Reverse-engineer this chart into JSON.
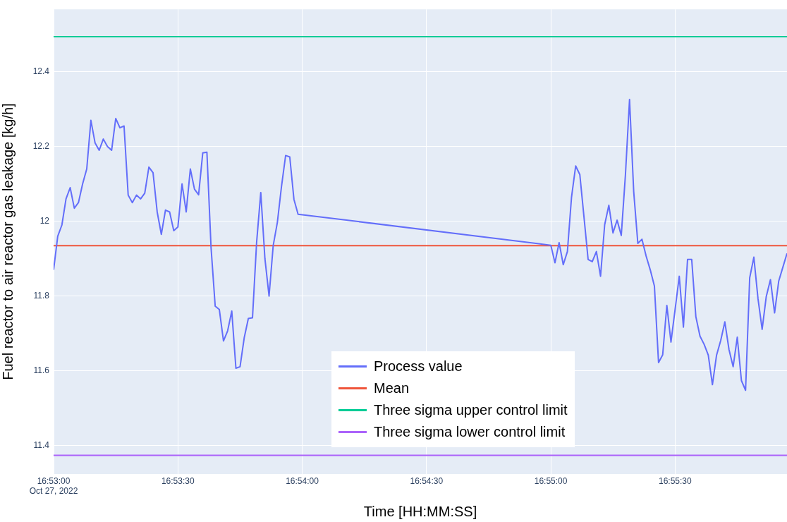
{
  "chart_data": {
    "type": "line",
    "xlabel": "Time [HH:MM:SS]",
    "ylabel": "Fuel reactor to air reactor gas leakage [kg/h]",
    "xlim": [
      "2022-10-27T16:53:00",
      "2022-10-27T16:55:57"
    ],
    "xticks": [
      {
        "value": "2022-10-27T16:53:00",
        "label": "16:53:00\nOct 27, 2022"
      },
      {
        "value": "2022-10-27T16:53:30",
        "label": "16:53:30"
      },
      {
        "value": "2022-10-27T16:54:00",
        "label": "16:54:00"
      },
      {
        "value": "2022-10-27T16:54:30",
        "label": "16:54:30"
      },
      {
        "value": "2022-10-27T16:55:00",
        "label": "16:55:00"
      },
      {
        "value": "2022-10-27T16:55:30",
        "label": "16:55:30"
      }
    ],
    "ylim": [
      11.324,
      12.567
    ],
    "yticks": [
      11.4,
      11.6,
      11.8,
      12,
      12.2,
      12.4
    ],
    "grid": true,
    "legend": "bottom",
    "x": [
      "2022-10-27T16:53:00",
      "2022-10-27T16:53:01",
      "2022-10-27T16:53:02",
      "2022-10-27T16:53:03",
      "2022-10-27T16:53:04",
      "2022-10-27T16:53:05",
      "2022-10-27T16:53:06",
      "2022-10-27T16:53:07",
      "2022-10-27T16:53:08",
      "2022-10-27T16:53:09",
      "2022-10-27T16:53:10",
      "2022-10-27T16:53:11",
      "2022-10-27T16:53:12",
      "2022-10-27T16:53:13",
      "2022-10-27T16:53:14",
      "2022-10-27T16:53:15",
      "2022-10-27T16:53:16",
      "2022-10-27T16:53:17",
      "2022-10-27T16:53:18",
      "2022-10-27T16:53:19",
      "2022-10-27T16:53:20",
      "2022-10-27T16:53:21",
      "2022-10-27T16:53:22",
      "2022-10-27T16:53:23",
      "2022-10-27T16:53:24",
      "2022-10-27T16:53:25",
      "2022-10-27T16:53:26",
      "2022-10-27T16:53:27",
      "2022-10-27T16:53:28",
      "2022-10-27T16:53:29",
      "2022-10-27T16:53:30",
      "2022-10-27T16:53:31",
      "2022-10-27T16:53:32",
      "2022-10-27T16:53:33",
      "2022-10-27T16:53:34",
      "2022-10-27T16:53:35",
      "2022-10-27T16:53:36",
      "2022-10-27T16:53:37",
      "2022-10-27T16:53:38",
      "2022-10-27T16:53:39",
      "2022-10-27T16:53:40",
      "2022-10-27T16:53:41",
      "2022-10-27T16:53:42",
      "2022-10-27T16:53:43",
      "2022-10-27T16:53:44",
      "2022-10-27T16:53:45",
      "2022-10-27T16:53:46",
      "2022-10-27T16:53:47",
      "2022-10-27T16:53:48",
      "2022-10-27T16:53:49",
      "2022-10-27T16:53:50",
      "2022-10-27T16:53:51",
      "2022-10-27T16:53:52",
      "2022-10-27T16:53:53",
      "2022-10-27T16:53:54",
      "2022-10-27T16:53:55",
      "2022-10-27T16:53:56",
      "2022-10-27T16:53:57",
      "2022-10-27T16:53:58",
      "2022-10-27T16:53:59",
      "2022-10-27T16:55:00",
      "2022-10-27T16:55:01",
      "2022-10-27T16:55:02",
      "2022-10-27T16:55:03",
      "2022-10-27T16:55:04",
      "2022-10-27T16:55:05",
      "2022-10-27T16:55:06",
      "2022-10-27T16:55:07",
      "2022-10-27T16:55:08",
      "2022-10-27T16:55:09",
      "2022-10-27T16:55:10",
      "2022-10-27T16:55:11",
      "2022-10-27T16:55:12",
      "2022-10-27T16:55:13",
      "2022-10-27T16:55:14",
      "2022-10-27T16:55:15",
      "2022-10-27T16:55:16",
      "2022-10-27T16:55:17",
      "2022-10-27T16:55:18",
      "2022-10-27T16:55:19",
      "2022-10-27T16:55:20",
      "2022-10-27T16:55:21",
      "2022-10-27T16:55:22",
      "2022-10-27T16:55:23",
      "2022-10-27T16:55:24",
      "2022-10-27T16:55:25",
      "2022-10-27T16:55:26",
      "2022-10-27T16:55:27",
      "2022-10-27T16:55:28",
      "2022-10-27T16:55:29",
      "2022-10-27T16:55:30",
      "2022-10-27T16:55:31",
      "2022-10-27T16:55:32",
      "2022-10-27T16:55:33",
      "2022-10-27T16:55:34",
      "2022-10-27T16:55:35",
      "2022-10-27T16:55:36",
      "2022-10-27T16:55:37",
      "2022-10-27T16:55:38",
      "2022-10-27T16:55:39",
      "2022-10-27T16:55:40",
      "2022-10-27T16:55:41",
      "2022-10-27T16:55:42",
      "2022-10-27T16:55:43",
      "2022-10-27T16:55:44",
      "2022-10-27T16:55:45",
      "2022-10-27T16:55:46",
      "2022-10-27T16:55:47",
      "2022-10-27T16:55:48",
      "2022-10-27T16:55:49",
      "2022-10-27T16:55:50",
      "2022-10-27T16:55:51",
      "2022-10-27T16:55:52",
      "2022-10-27T16:55:53",
      "2022-10-27T16:55:54",
      "2022-10-27T16:55:55",
      "2022-10-27T16:55:56",
      "2022-10-27T16:55:57"
    ],
    "series": [
      {
        "name": "Process value",
        "color": "#636efa",
        "values": [
          11.87,
          11.96,
          11.99,
          12.06,
          12.09,
          12.035,
          12.05,
          12.1,
          12.14,
          12.27,
          12.21,
          12.19,
          12.22,
          12.2,
          12.19,
          12.275,
          12.25,
          12.255,
          12.07,
          12.05,
          12.07,
          12.06,
          12.075,
          12.145,
          12.13,
          12.025,
          11.965,
          12.03,
          12.025,
          11.975,
          11.985,
          12.1,
          12.025,
          12.14,
          12.086,
          12.071,
          12.183,
          12.185,
          11.93,
          11.773,
          11.764,
          11.68,
          11.707,
          11.76,
          11.607,
          11.611,
          11.688,
          11.74,
          11.742,
          11.944,
          12.077,
          11.9,
          11.8,
          11.935,
          11.997,
          12.093,
          12.176,
          12.172,
          12.059,
          12.019,
          11.936,
          11.889,
          11.943,
          11.884,
          11.919,
          12.065,
          12.148,
          12.125,
          12.012,
          11.898,
          11.892,
          11.919,
          11.853,
          11.991,
          12.043,
          11.969,
          12.003,
          11.962,
          12.123,
          12.326,
          12.08,
          11.941,
          11.952,
          11.907,
          11.87,
          11.827,
          11.622,
          11.643,
          11.775,
          11.677,
          11.765,
          11.853,
          11.717,
          11.898,
          11.898,
          11.745,
          11.693,
          11.671,
          11.642,
          11.563,
          11.642,
          11.681,
          11.731,
          11.657,
          11.611,
          11.69,
          11.574,
          11.548,
          11.849,
          11.904,
          11.793,
          11.711,
          11.799,
          11.844,
          11.755,
          11.84,
          11.877,
          11.914
        ]
      },
      {
        "name": "Mean",
        "color": "#ef553b",
        "x": [
          "2022-10-27T16:53:00",
          "2022-10-27T16:55:57"
        ],
        "values": [
          11.935,
          11.935
        ]
      },
      {
        "name": "Three sigma upper control limit",
        "color": "#00cc96",
        "x": [
          "2022-10-27T16:53:00",
          "2022-10-27T16:55:57"
        ],
        "values": [
          12.494,
          12.494
        ]
      },
      {
        "name": "Three sigma lower control limit",
        "color": "#ab63fa",
        "x": [
          "2022-10-27T16:53:00",
          "2022-10-27T16:55:57"
        ],
        "values": [
          11.374,
          11.374
        ]
      }
    ]
  }
}
